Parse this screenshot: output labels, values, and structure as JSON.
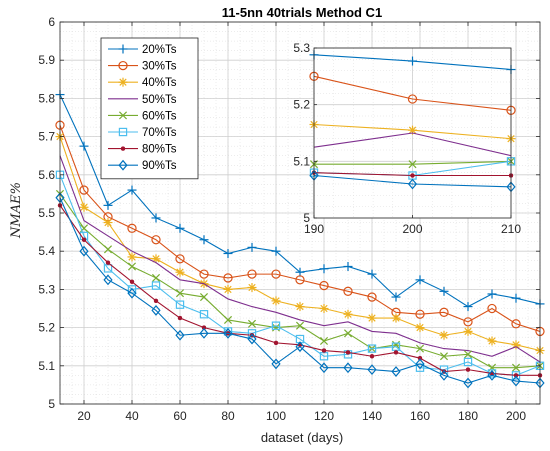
{
  "chart_data": {
    "type": "line",
    "title": "11-5nn 40trials Method C1",
    "xlabel": "dataset (days)",
    "ylabel": "NMAE%",
    "xlim": [
      10,
      210
    ],
    "ylim": [
      5,
      6
    ],
    "xticks": [
      20,
      40,
      60,
      80,
      100,
      120,
      140,
      160,
      180,
      200
    ],
    "yticks": [
      5,
      5.1,
      5.2,
      5.3,
      5.4,
      5.5,
      5.6,
      5.7,
      5.8,
      5.9,
      6
    ],
    "ytick_labels": [
      "5",
      "5.1",
      "5.2",
      "5.3",
      "5.4",
      "5.5",
      "5.6",
      "5.7",
      "5.8",
      "5.9",
      "6"
    ],
    "grid": true,
    "legend_position": "top-left",
    "x": [
      10,
      20,
      30,
      40,
      50,
      60,
      70,
      80,
      90,
      100,
      110,
      120,
      130,
      140,
      150,
      160,
      170,
      180,
      190,
      200,
      210
    ],
    "series": [
      {
        "name": "20%Ts",
        "color": "#0072BD",
        "marker": "plus",
        "values": [
          5.81,
          5.675,
          5.52,
          5.56,
          5.487,
          5.46,
          5.43,
          5.394,
          5.41,
          5.4,
          5.345,
          5.354,
          5.36,
          5.34,
          5.28,
          5.325,
          5.295,
          5.255,
          5.288,
          5.277,
          5.262
        ]
      },
      {
        "name": "30%Ts",
        "color": "#D95319",
        "marker": "circle",
        "values": [
          5.73,
          5.56,
          5.49,
          5.46,
          5.43,
          5.38,
          5.34,
          5.33,
          5.34,
          5.34,
          5.325,
          5.31,
          5.295,
          5.28,
          5.24,
          5.235,
          5.24,
          5.215,
          5.25,
          5.21,
          5.19
        ]
      },
      {
        "name": "40%Ts",
        "color": "#EDB120",
        "marker": "asterisk",
        "values": [
          5.7,
          5.515,
          5.475,
          5.385,
          5.38,
          5.345,
          5.315,
          5.3,
          5.305,
          5.27,
          5.255,
          5.25,
          5.235,
          5.225,
          5.225,
          5.2,
          5.18,
          5.19,
          5.165,
          5.155,
          5.14
        ]
      },
      {
        "name": "50%Ts",
        "color": "#7E2F8E",
        "marker": "none",
        "values": [
          5.65,
          5.48,
          5.44,
          5.4,
          5.37,
          5.325,
          5.315,
          5.275,
          5.255,
          5.24,
          5.22,
          5.205,
          5.215,
          5.19,
          5.185,
          5.16,
          5.145,
          5.14,
          5.125,
          5.15,
          5.11
        ]
      },
      {
        "name": "60%Ts",
        "color": "#77AC30",
        "marker": "x",
        "values": [
          5.55,
          5.46,
          5.405,
          5.36,
          5.33,
          5.29,
          5.28,
          5.22,
          5.21,
          5.2,
          5.205,
          5.165,
          5.185,
          5.145,
          5.155,
          5.145,
          5.125,
          5.13,
          5.095,
          5.095,
          5.1
        ]
      },
      {
        "name": "70%Ts",
        "color": "#4DBEEE",
        "marker": "square",
        "values": [
          5.6,
          5.44,
          5.355,
          5.3,
          5.31,
          5.26,
          5.235,
          5.19,
          5.185,
          5.205,
          5.17,
          5.125,
          5.13,
          5.145,
          5.15,
          5.095,
          5.09,
          5.11,
          5.08,
          5.075,
          5.1
        ]
      },
      {
        "name": "80%Ts",
        "color": "#A2142F",
        "marker": "dot",
        "values": [
          5.52,
          5.43,
          5.37,
          5.32,
          5.27,
          5.225,
          5.2,
          5.185,
          5.18,
          5.16,
          5.155,
          5.14,
          5.135,
          5.125,
          5.135,
          5.12,
          5.085,
          5.09,
          5.08,
          5.075,
          5.075
        ]
      },
      {
        "name": "90%Ts",
        "color": "#0072BD",
        "marker": "diamond",
        "values": [
          5.54,
          5.4,
          5.325,
          5.29,
          5.245,
          5.18,
          5.185,
          5.185,
          5.17,
          5.105,
          5.15,
          5.095,
          5.095,
          5.09,
          5.085,
          5.105,
          5.075,
          5.055,
          5.075,
          5.06,
          5.055
        ]
      }
    ],
    "inset": {
      "xlim": [
        190,
        210
      ],
      "ylim": [
        5,
        5.3
      ],
      "xticks": [
        190,
        200,
        210
      ],
      "yticks": [
        5,
        5.1,
        5.2,
        5.3
      ],
      "ytick_labels": [
        "5",
        "5.1",
        "5.2",
        "5.3"
      ]
    }
  }
}
